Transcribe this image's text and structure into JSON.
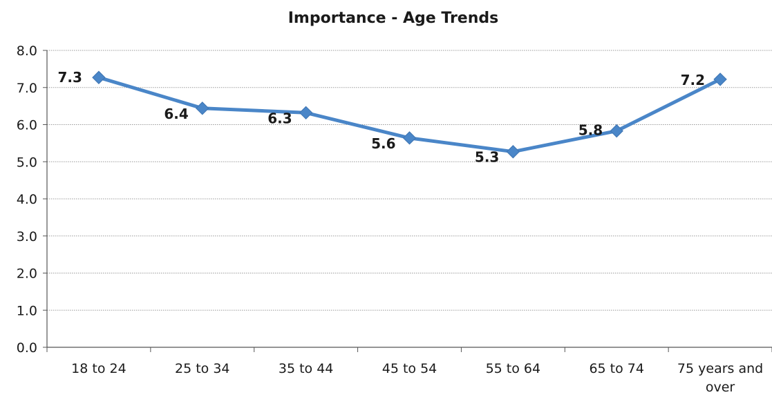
{
  "chart_data": {
    "type": "line",
    "title": "Importance - Age Trends",
    "categories": [
      "18 to 24",
      "25 to 34",
      "35 to 44",
      "45 to 54",
      "55 to 64",
      "65 to 74",
      "75 years and over"
    ],
    "category_lines": [
      [
        "18 to 24"
      ],
      [
        "25 to 34"
      ],
      [
        "35 to 44"
      ],
      [
        "45 to 54"
      ],
      [
        "55 to 64"
      ],
      [
        "65 to 74"
      ],
      [
        "75 years and",
        "over"
      ]
    ],
    "series": [
      {
        "values": [
          7.27,
          6.44,
          6.32,
          5.64,
          5.27,
          5.83,
          7.22
        ],
        "labels": [
          "7.3",
          "6.4",
          "6.3",
          "5.6",
          "5.3",
          "5.8",
          "7.2"
        ],
        "color": "#4a86c8"
      }
    ],
    "ylim": [
      0,
      8
    ],
    "yticks": [
      "0.0",
      "1.0",
      "2.0",
      "3.0",
      "4.0",
      "5.0",
      "6.0",
      "7.0",
      "8.0"
    ],
    "grid": true,
    "grid_color": "#9a9a9a",
    "axis_color": "#555555"
  }
}
